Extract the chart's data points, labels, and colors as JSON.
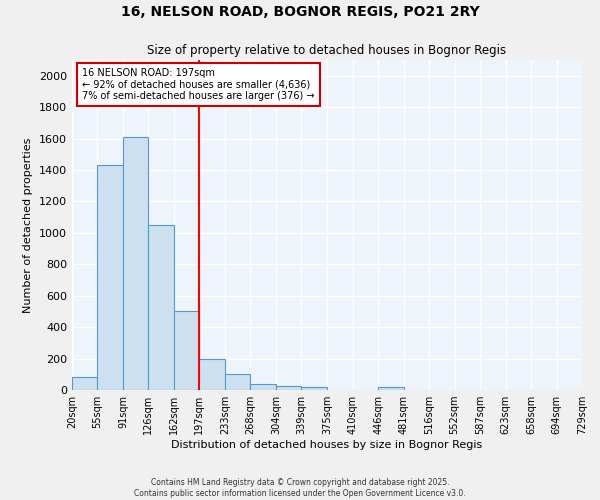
{
  "title": "16, NELSON ROAD, BOGNOR REGIS, PO21 2RY",
  "subtitle": "Size of property relative to detached houses in Bognor Regis",
  "xlabel": "Distribution of detached houses by size in Bognor Regis",
  "ylabel": "Number of detached properties",
  "bar_edges": [
    20,
    55,
    91,
    126,
    162,
    197,
    233,
    268,
    304,
    339,
    375,
    410,
    446,
    481,
    516,
    552,
    587,
    623,
    658,
    694,
    729
  ],
  "bar_heights": [
    80,
    1430,
    1610,
    1050,
    500,
    200,
    105,
    40,
    28,
    20,
    0,
    0,
    20,
    0,
    0,
    0,
    0,
    0,
    0,
    0
  ],
  "bar_color": "#cce0f0",
  "bar_edge_color": "#5599cc",
  "red_line_x": 197,
  "annotation_text": "16 NELSON ROAD: 197sqm\n← 92% of detached houses are smaller (4,636)\n7% of semi-detached houses are larger (376) →",
  "annotation_box_color": "#ffffff",
  "annotation_box_edge": "#cc0000",
  "ylim": [
    0,
    2100
  ],
  "yticks": [
    0,
    200,
    400,
    600,
    800,
    1000,
    1200,
    1400,
    1600,
    1800,
    2000
  ],
  "background_color": "#eef4fb",
  "grid_color": "#ffffff",
  "fig_background": "#f0f0f0",
  "footer_line1": "Contains HM Land Registry data © Crown copyright and database right 2025.",
  "footer_line2": "Contains public sector information licensed under the Open Government Licence v3.0."
}
